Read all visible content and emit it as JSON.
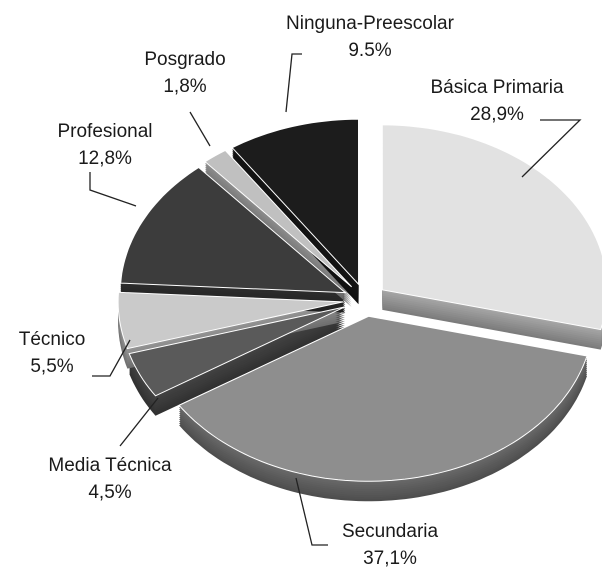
{
  "chart_data": {
    "type": "pie",
    "categories": [
      "Básica Primaria",
      "Secundaria",
      "Media Técnica",
      "Técnico",
      "Profesional",
      "Posgrado",
      "Ninguna-Preescolar"
    ],
    "values": [
      28.9,
      37.1,
      4.5,
      5.5,
      12.8,
      1.8,
      9.5
    ],
    "value_labels": [
      "28,9%",
      "37,1%",
      "4,5%",
      "5,5%",
      "12,8%",
      "1,8%",
      "9.5%"
    ],
    "colors": [
      "#e2e2e2",
      "#8e8e8e",
      "#5a5a5a",
      "#cacaca",
      "#3c3c3c",
      "#c0c0c0",
      "#1c1c1c"
    ]
  }
}
